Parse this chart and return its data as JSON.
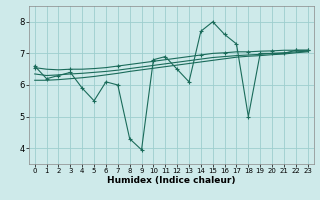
{
  "x": [
    0,
    1,
    2,
    3,
    4,
    5,
    6,
    7,
    8,
    9,
    10,
    11,
    12,
    13,
    14,
    15,
    16,
    17,
    18,
    19,
    20,
    21,
    22,
    23
  ],
  "line_volatile": [
    6.6,
    6.2,
    6.3,
    6.4,
    5.9,
    5.5,
    6.1,
    6.0,
    4.3,
    3.95,
    6.8,
    6.9,
    6.5,
    6.1,
    7.7,
    8.0,
    7.6,
    7.3,
    5.0,
    7.0,
    7.0,
    7.0,
    7.1,
    7.1
  ],
  "line_upper": [
    6.55,
    6.5,
    6.48,
    6.5,
    6.5,
    6.52,
    6.55,
    6.6,
    6.65,
    6.7,
    6.75,
    6.8,
    6.85,
    6.9,
    6.95,
    7.0,
    7.02,
    7.05,
    7.05,
    7.07,
    7.08,
    7.1,
    7.1,
    7.1
  ],
  "line_mid1": [
    6.35,
    6.3,
    6.32,
    6.35,
    6.37,
    6.4,
    6.43,
    6.47,
    6.52,
    6.57,
    6.62,
    6.67,
    6.72,
    6.77,
    6.82,
    6.87,
    6.9,
    6.93,
    6.95,
    6.97,
    7.0,
    7.02,
    7.05,
    7.07
  ],
  "line_mid2": [
    6.15,
    6.15,
    6.17,
    6.2,
    6.23,
    6.27,
    6.32,
    6.37,
    6.43,
    6.48,
    6.53,
    6.58,
    6.63,
    6.68,
    6.73,
    6.78,
    6.83,
    6.88,
    6.91,
    6.93,
    6.96,
    6.98,
    7.02,
    7.05
  ],
  "bg_color": "#ceeaea",
  "grid_color": "#9dcece",
  "line_color": "#1a6b5a",
  "xlabel": "Humidex (Indice chaleur)",
  "ylim": [
    3.5,
    8.5
  ],
  "xlim": [
    -0.5,
    23.5
  ],
  "yticks": [
    4,
    5,
    6,
    7,
    8
  ],
  "xticks": [
    0,
    1,
    2,
    3,
    4,
    5,
    6,
    7,
    8,
    9,
    10,
    11,
    12,
    13,
    14,
    15,
    16,
    17,
    18,
    19,
    20,
    21,
    22,
    23
  ]
}
